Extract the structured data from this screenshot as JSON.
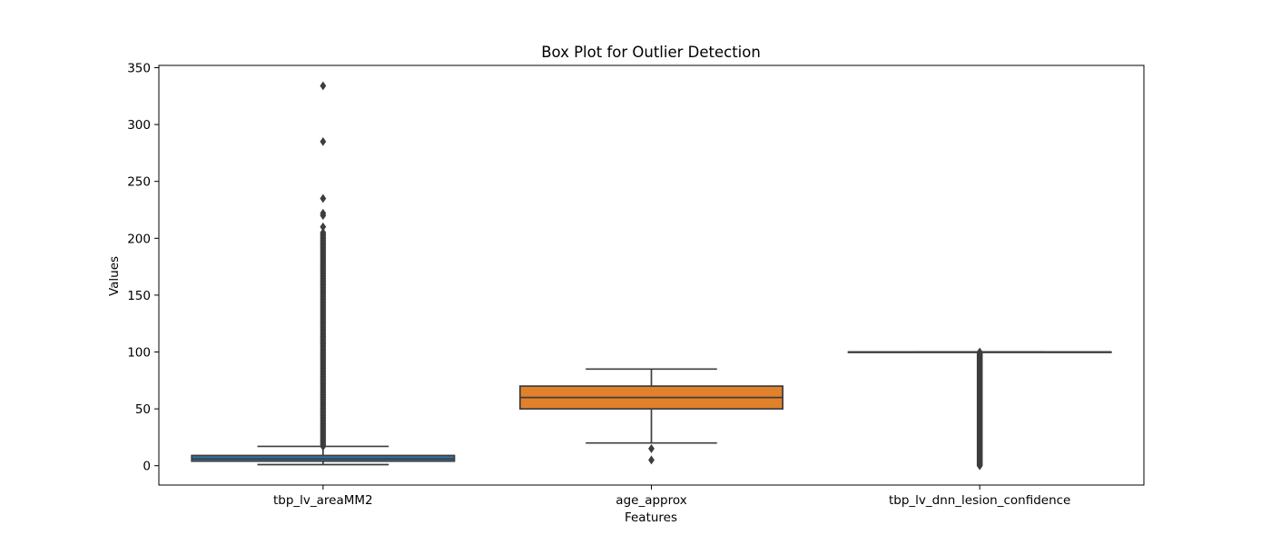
{
  "chart_data": {
    "type": "box",
    "title": "Box Plot for Outlier Detection",
    "xlabel": "Features",
    "ylabel": "Values",
    "ylim": [
      -17,
      352
    ],
    "yticks": [
      0,
      50,
      100,
      150,
      200,
      250,
      300,
      350
    ],
    "grid": false,
    "categories": [
      "tbp_lv_areaMM2",
      "age_approx",
      "tbp_lv_dnn_lesion_confidence"
    ],
    "boxes": [
      {
        "category": "tbp_lv_areaMM2",
        "color": "#3274a1",
        "whisker_low": 1,
        "q1": 4,
        "median": 6,
        "q3": 9,
        "whisker_high": 17,
        "outliers_dense_range": [
          17,
          205
        ],
        "outliers": [
          210,
          220,
          222,
          235,
          285,
          334
        ]
      },
      {
        "category": "age_approx",
        "color": "#e1812c",
        "whisker_low": 20,
        "q1": 50,
        "median": 60,
        "q3": 70,
        "whisker_high": 85,
        "outliers_dense_range": null,
        "outliers": [
          5,
          15
        ]
      },
      {
        "category": "tbp_lv_dnn_lesion_confidence",
        "color": "#3a923a",
        "whisker_low": 100,
        "q1": 100,
        "median": 100,
        "q3": 100,
        "whisker_high": 100,
        "outliers_dense_range": [
          0,
          100
        ],
        "outliers": []
      }
    ]
  }
}
